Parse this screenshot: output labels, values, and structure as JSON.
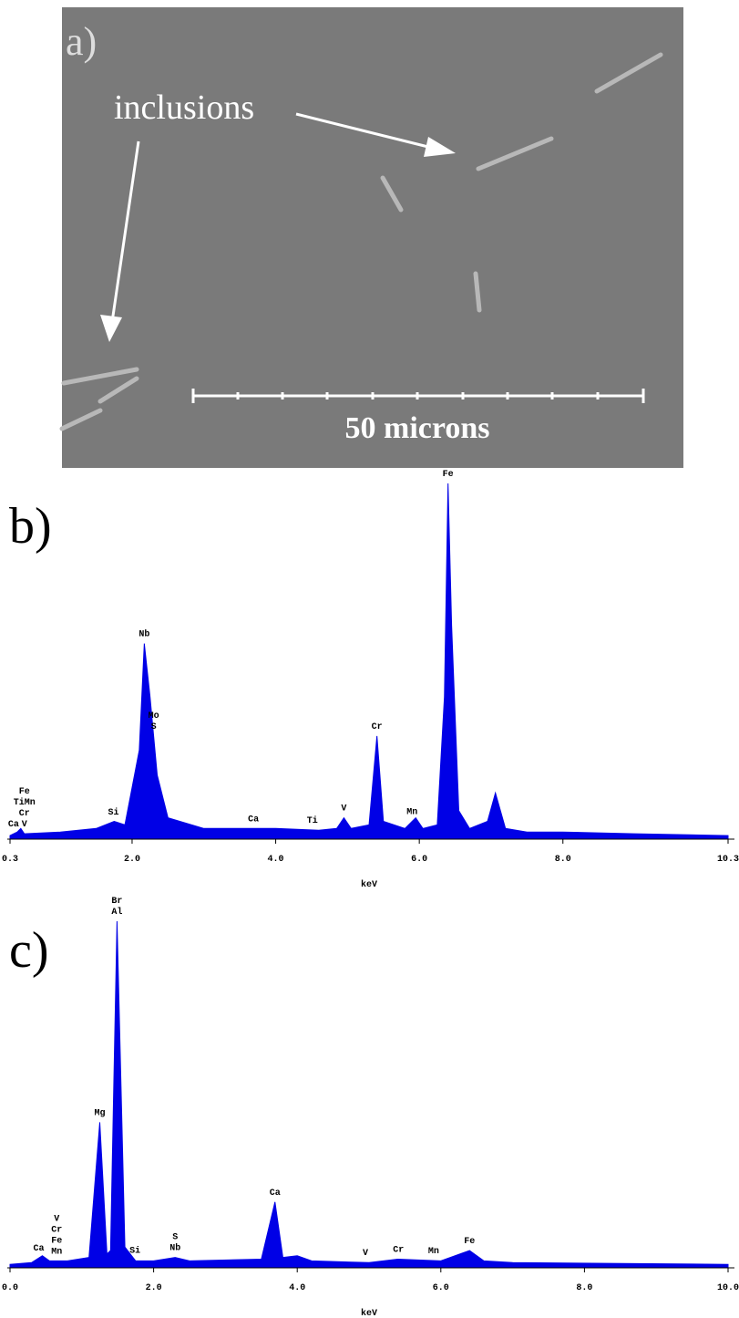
{
  "panel_a": {
    "label": "a)",
    "annotation": "inclusions",
    "scale_bar": "50 microns"
  },
  "chart_data": [
    {
      "type": "area",
      "label": "b)",
      "x_label": "keV",
      "x": [
        0.3,
        0.4,
        0.45,
        0.5,
        1.0,
        1.5,
        1.75,
        1.9,
        2.1,
        2.17,
        2.25,
        2.35,
        2.5,
        3.0,
        4.0,
        4.6,
        4.85,
        4.95,
        5.05,
        5.3,
        5.41,
        5.5,
        5.8,
        5.9,
        5.95,
        6.05,
        6.25,
        6.35,
        6.4,
        6.45,
        6.55,
        6.7,
        6.95,
        7.06,
        7.2,
        7.5,
        8.0,
        9.0,
        10.3
      ],
      "series": [
        {
          "color": "#0000e6",
          "values": [
            1,
            2,
            3,
            1.5,
            2,
            3,
            5,
            4,
            25,
            55,
            40,
            18,
            6,
            3,
            3,
            2.5,
            3,
            6,
            3,
            4,
            29,
            5,
            3,
            5,
            6,
            3,
            4,
            40,
            100,
            60,
            8,
            3,
            5,
            13,
            3,
            2,
            2,
            1.5,
            1
          ]
        }
      ],
      "xlim": [
        0.3,
        10.3
      ],
      "xticks": [
        0.3,
        {
          "value": 2,
          "label": "2.0"
        },
        {
          "value": 4,
          "label": "4.0"
        },
        {
          "value": 6,
          "label": "6.0"
        },
        {
          "value": 8,
          "label": "8.0"
        },
        10.3
      ],
      "ylim": [
        0,
        100
      ],
      "peak_labels": [
        {
          "x": 0.35,
          "labels": [
            "Ca"
          ]
        },
        {
          "x": 0.5,
          "labels": [
            "V",
            "Cr",
            "TiMn",
            "Fe"
          ]
        },
        {
          "x": 1.74,
          "labels": [
            "Si"
          ]
        },
        {
          "x": 2.17,
          "labels": [
            "Nb"
          ]
        },
        {
          "x": 2.3,
          "labels": [
            "S",
            "Mo"
          ]
        },
        {
          "x": 3.69,
          "labels": [
            "Ca"
          ]
        },
        {
          "x": 4.51,
          "labels": [
            "Ti"
          ]
        },
        {
          "x": 4.95,
          "labels": [
            "V"
          ]
        },
        {
          "x": 5.41,
          "labels": [
            "Cr"
          ]
        },
        {
          "x": 5.9,
          "labels": [
            "Mn"
          ]
        },
        {
          "x": 6.4,
          "labels": [
            "Fe"
          ]
        }
      ]
    },
    {
      "type": "area",
      "label": "c)",
      "x_label": "keV",
      "x": [
        0.0,
        0.3,
        0.45,
        0.55,
        0.8,
        1.1,
        1.25,
        1.35,
        1.4,
        1.49,
        1.6,
        1.75,
        2.0,
        2.3,
        2.5,
        3.5,
        3.69,
        3.8,
        4.0,
        4.2,
        5.0,
        5.4,
        6.0,
        6.4,
        6.6,
        7.0,
        10.0
      ],
      "series": [
        {
          "color": "#0000e6",
          "values": [
            1,
            1.5,
            3.5,
            2,
            2,
            3,
            42,
            4,
            5,
            100,
            6,
            2,
            2,
            3,
            2,
            2.5,
            19,
            3,
            3.5,
            2,
            1.5,
            2.5,
            2,
            5,
            2,
            1.5,
            1
          ]
        }
      ],
      "xlim": [
        0,
        10
      ],
      "xticks": [
        {
          "value": 0,
          "label": "0.0"
        },
        {
          "value": 2,
          "label": "2.0"
        },
        {
          "value": 4,
          "label": "4.0"
        },
        {
          "value": 6,
          "label": "6.0"
        },
        {
          "value": 8,
          "label": "8.0"
        },
        {
          "value": 10,
          "label": "10.0"
        }
      ],
      "ylim": [
        0,
        100
      ],
      "peak_labels": [
        {
          "x": 0.4,
          "labels": [
            "Ca"
          ]
        },
        {
          "x": 0.65,
          "labels": [
            "Mn",
            "Fe",
            "Cr",
            "V"
          ]
        },
        {
          "x": 1.25,
          "labels": [
            "Mg"
          ]
        },
        {
          "x": 1.49,
          "labels": [
            "Al",
            "Br"
          ]
        },
        {
          "x": 1.74,
          "labels": [
            "Si"
          ]
        },
        {
          "x": 2.3,
          "labels": [
            "Nb",
            "S"
          ]
        },
        {
          "x": 3.69,
          "labels": [
            "Ca"
          ]
        },
        {
          "x": 4.95,
          "labels": [
            "V"
          ]
        },
        {
          "x": 5.41,
          "labels": [
            "Cr"
          ]
        },
        {
          "x": 5.9,
          "labels": [
            "Mn"
          ]
        },
        {
          "x": 6.4,
          "labels": [
            "Fe"
          ]
        }
      ]
    }
  ]
}
